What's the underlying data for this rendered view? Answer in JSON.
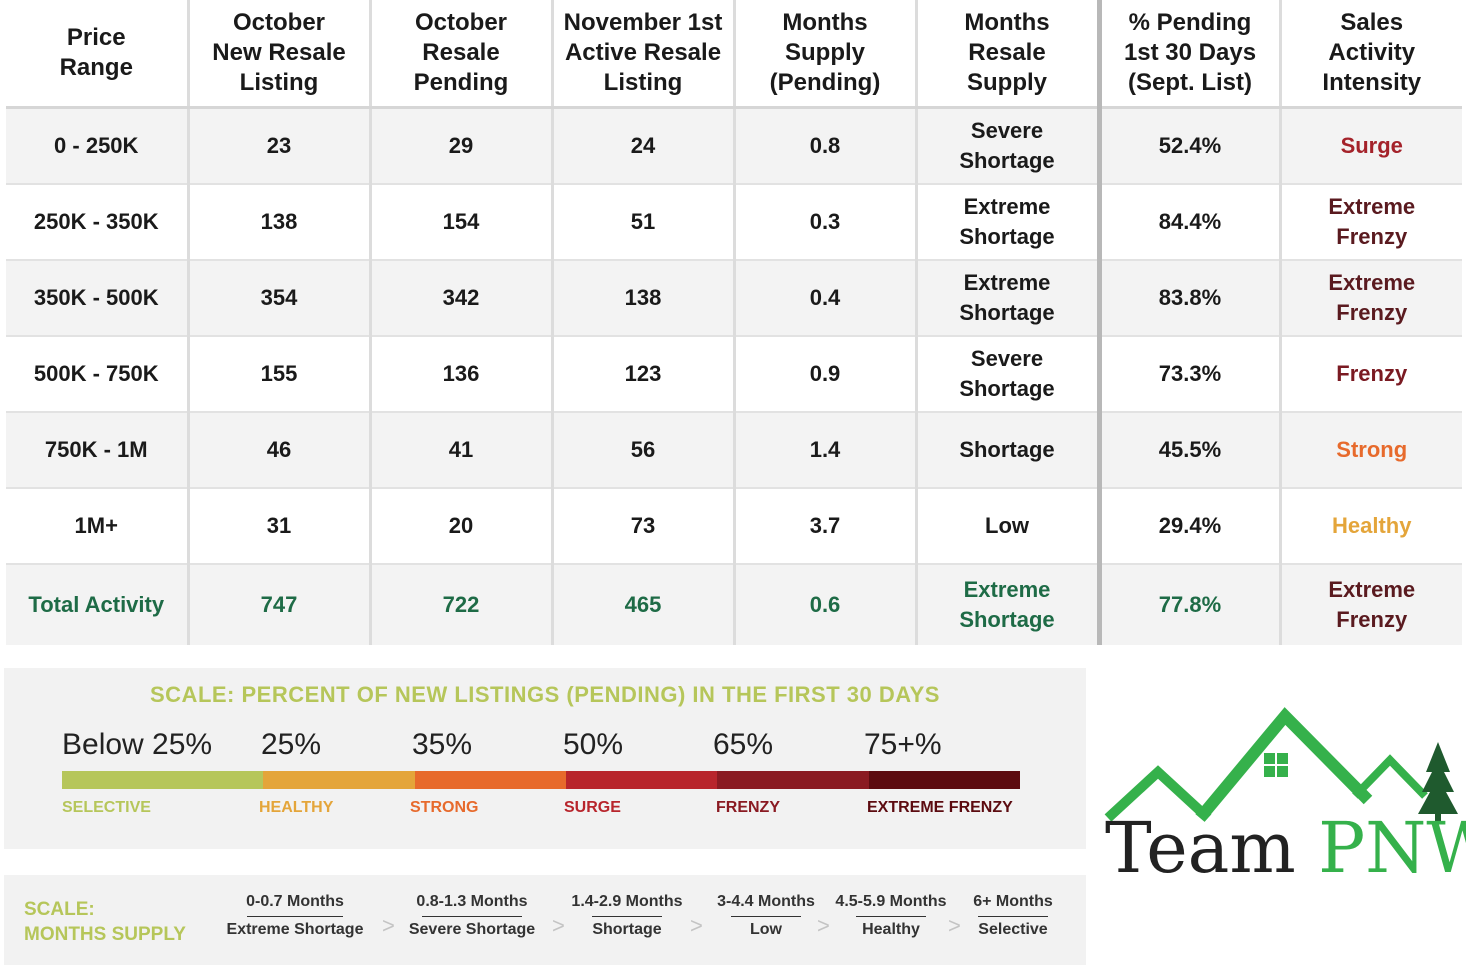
{
  "table": {
    "headers": [
      [
        "Price",
        "Range"
      ],
      [
        "October",
        "New Resale",
        "Listing"
      ],
      [
        "October",
        "Resale",
        "Pending"
      ],
      [
        "November 1st",
        "Active Resale",
        "Listing"
      ],
      [
        "Months",
        "Supply",
        "(Pending)"
      ],
      [
        "Months",
        "Resale",
        "Supply"
      ],
      [
        "% Pending",
        "1st 30 Days",
        "(Sept. List)"
      ],
      [
        "Sales",
        "Activity",
        "Intensity"
      ]
    ],
    "rows": [
      {
        "range": "0 - 250K",
        "new_listing": "23",
        "pending": "29",
        "active": "24",
        "months_pending": "0.8",
        "supply": [
          "Severe",
          "Shortage"
        ],
        "pct_pending": "52.4%",
        "intensity": [
          "Surge"
        ],
        "intensity_color": "#a4222a"
      },
      {
        "range": "250K - 350K",
        "new_listing": "138",
        "pending": "154",
        "active": "51",
        "months_pending": "0.3",
        "supply": [
          "Extreme",
          "Shortage"
        ],
        "pct_pending": "84.4%",
        "intensity": [
          "Extreme",
          "Frenzy"
        ],
        "intensity_color": "#5a1a1f"
      },
      {
        "range": "350K - 500K",
        "new_listing": "354",
        "pending": "342",
        "active": "138",
        "months_pending": "0.4",
        "supply": [
          "Extreme",
          "Shortage"
        ],
        "pct_pending": "83.8%",
        "intensity": [
          "Extreme",
          "Frenzy"
        ],
        "intensity_color": "#5a1a1f"
      },
      {
        "range": "500K - 750K",
        "new_listing": "155",
        "pending": "136",
        "active": "123",
        "months_pending": "0.9",
        "supply": [
          "Severe",
          "Shortage"
        ],
        "pct_pending": "73.3%",
        "intensity": [
          "Frenzy"
        ],
        "intensity_color": "#7a1a22"
      },
      {
        "range": "750K - 1M",
        "new_listing": "46",
        "pending": "41",
        "active": "56",
        "months_pending": "1.4",
        "supply": [
          "Shortage"
        ],
        "pct_pending": "45.5%",
        "intensity": [
          "Strong"
        ],
        "intensity_color": "#e76a2c"
      },
      {
        "range": "1M+",
        "new_listing": "31",
        "pending": "20",
        "active": "73",
        "months_pending": "3.7",
        "supply": [
          "Low"
        ],
        "pct_pending": "29.4%",
        "intensity": [
          "Healthy"
        ],
        "intensity_color": "#e4a53a"
      }
    ],
    "total": {
      "range": "Total Activity",
      "new_listing": "747",
      "pending": "722",
      "active": "465",
      "months_pending": "0.6",
      "supply": [
        "Extreme",
        "Shortage"
      ],
      "pct_pending": "77.8%",
      "intensity": [
        "Extreme",
        "Frenzy"
      ],
      "intensity_color": "#5a1a1f"
    },
    "total_color": "#1e6b46"
  },
  "pct_scale": {
    "title": "SCALE: PERCENT OF NEW LISTINGS (PENDING) IN THE FIRST 30 DAYS",
    "title_color": "#b6c65a",
    "thresholds": [
      "Below 25%",
      "25%",
      "35%",
      "50%",
      "65%",
      "75+%"
    ],
    "tiers": [
      {
        "name": "SELECTIVE",
        "color": "#b6c65a"
      },
      {
        "name": "HEALTHY",
        "color": "#e4a53a"
      },
      {
        "name": "STRONG",
        "color": "#e76a2c"
      },
      {
        "name": "SURGE",
        "color": "#b8252c"
      },
      {
        "name": "FRENZY",
        "color": "#8a1a22"
      },
      {
        "name": "EXTREME FRENZY",
        "color": "#5c0b10"
      }
    ]
  },
  "months_scale": {
    "title_line1": "SCALE:",
    "title_line2": "MONTHS SUPPLY",
    "items": [
      {
        "range": "0-0.7 Months",
        "name": "Extreme Shortage"
      },
      {
        "range": "0.8-1.3 Months",
        "name": "Severe Shortage"
      },
      {
        "range": "1.4-2.9 Months",
        "name": "Shortage"
      },
      {
        "range": "3-4.4 Months",
        "name": "Low"
      },
      {
        "range": "4.5-5.9 Months",
        "name": "Healthy"
      },
      {
        "range": "6+ Months",
        "name": "Selective"
      }
    ],
    "arrow": ">"
  },
  "logo": {
    "word1": "Team",
    "word2": "PNW",
    "brand_color": "#35b14b"
  }
}
